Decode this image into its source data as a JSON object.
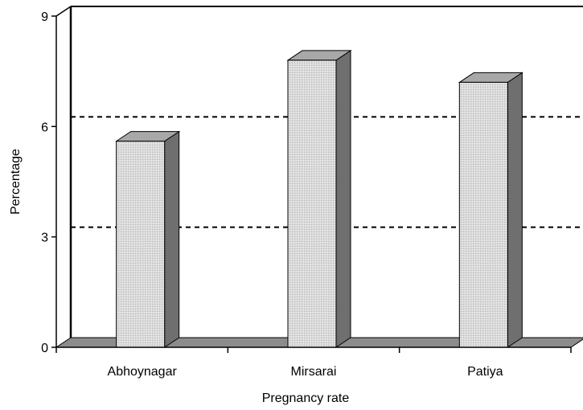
{
  "chart_data": {
    "type": "bar",
    "categories": [
      "Abhoynagar",
      "Mirsarai",
      "Patiya"
    ],
    "values": [
      5.6,
      7.8,
      7.2
    ],
    "xlabel": "Pregnancy rate",
    "ylabel": "Percentage",
    "ylim": [
      0,
      9
    ],
    "yticks": [
      "0",
      "3",
      "6",
      "9"
    ],
    "grid": "dashed horizontal lines at 3 and 6",
    "style": "3d-column",
    "colors": {
      "bar_front": "#dadada",
      "bar_top": "#a8a8a8",
      "bar_side": "#6f6f6f",
      "floor": "#8c8c8c",
      "grid": "#000000"
    }
  }
}
